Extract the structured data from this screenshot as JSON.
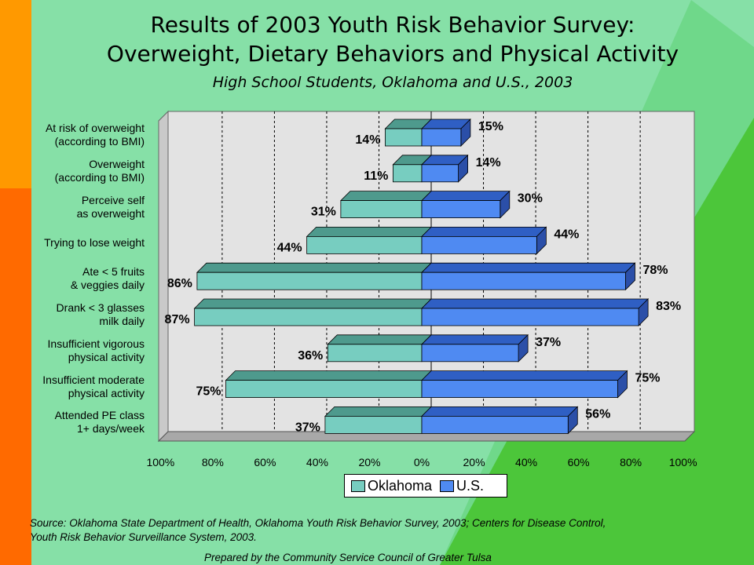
{
  "title_line1": "Results of 2003 Youth Risk Behavior Survey:",
  "title_line2": "Overweight, Dietary Behaviors and Physical Activity",
  "subtitle": "High School Students, Oklahoma and U.S., 2003",
  "source_line1": "Source:  Oklahoma State Department of Health, Oklahoma Youth Risk Behavior Survey, 2003; Centers for Disease Control,",
  "source_line2": "Youth Risk Behavior Surveillance System, 2003.",
  "prepared_by": "Prepared by the Community Service Council of Greater Tulsa",
  "colors": {
    "oklahoma": "#77cdc0",
    "oklahoma_top": "#4e9a8d",
    "us": "#4f8af2",
    "us_top": "#2f5fc4",
    "us_side": "#2b4fa8",
    "plot_bg": "#e3e3e3",
    "bg_green": "#4cc63a",
    "bg_light": "#7fdc8e",
    "orange": "#ff9900",
    "orange_dark": "#ff6a00"
  },
  "chart_data": {
    "type": "bar",
    "orientation": "horizontal-butterfly",
    "categories": [
      "At risk of overweight\n(according to BMI)",
      "Overweight\n(according to BMI)",
      "Perceive self\nas overweight",
      "Trying to lose weight",
      "Ate < 5 fruits\n& veggies daily",
      "Drank < 3 glasses\nmilk daily",
      "Insufficient vigorous\nphysical activity",
      "Insufficient moderate\nphysical activity",
      "Attended PE class\n1+ days/week"
    ],
    "series": [
      {
        "name": "Oklahoma",
        "values": [
          14,
          11,
          31,
          44,
          86,
          87,
          36,
          75,
          37
        ],
        "labels": [
          "14%",
          "11%",
          "31%",
          "44%",
          "86%",
          "87%",
          "36%",
          "75%",
          "37%"
        ]
      },
      {
        "name": "U.S.",
        "values": [
          15,
          14,
          30,
          44,
          78,
          83,
          37,
          75,
          56
        ],
        "labels": [
          "15%",
          "14%",
          "30%",
          "44%",
          "78%",
          "83%",
          "37%",
          "75%",
          "56%"
        ]
      }
    ],
    "xlim": [
      -100,
      100
    ],
    "xticks": [
      "100%",
      "80%",
      "60%",
      "40%",
      "20%",
      "0%",
      "20%",
      "40%",
      "60%",
      "80%",
      "100%"
    ],
    "grid": true,
    "legend": {
      "placement": "bottom",
      "entries": [
        "Oklahoma",
        "U.S."
      ]
    }
  }
}
